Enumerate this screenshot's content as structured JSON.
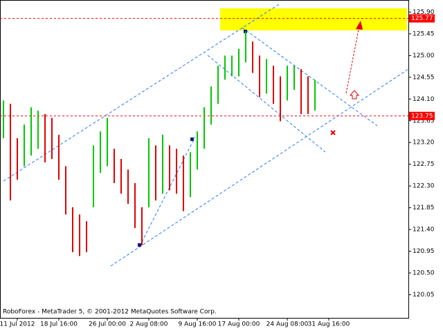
{
  "chart_data": {
    "type": "ohlc",
    "copyright": "RoboForex - MetaTrader 5, © 2001-2012 MetaQuotes Software Corp.",
    "categories": [
      null,
      null,
      "11 Jul 2012",
      null,
      null,
      null,
      null,
      null,
      "18 Jul 16:00",
      null,
      null,
      null,
      null,
      null,
      null,
      "26 Jul 00:00",
      null,
      null,
      null,
      null,
      null,
      "2 Aug 08:00",
      null,
      null,
      null,
      null,
      null,
      null,
      "9 Aug 16:00",
      null,
      null,
      null,
      null,
      null,
      "17 Aug 00:00",
      null,
      null,
      null,
      null,
      null,
      null,
      "24 Aug 08:00",
      null,
      null,
      null,
      null,
      null,
      "31 Aug 16:00",
      null,
      null,
      null,
      null,
      null,
      null,
      null,
      null,
      null,
      null,
      null
    ],
    "highs": [
      124.07,
      124.0,
      123.29,
      123.57,
      123.93,
      123.86,
      123.79,
      123.71,
      123.36,
      122.71,
      121.86,
      121.71,
      121.57,
      123.14,
      123.43,
      123.71,
      123.07,
      122.86,
      122.64,
      122.36,
      121.86,
      123.29,
      123.14,
      123.36,
      123.14,
      123.07,
      122.93,
      123.0,
      123.43,
      123.93,
      124.36,
      124.79,
      125.0,
      125.0,
      125.14,
      125.5,
      125.29,
      125.0,
      124.93,
      124.79,
      124.57,
      124.79,
      124.79,
      124.72,
      124.57,
      124.5,
      null,
      null,
      null,
      null,
      null,
      null,
      null,
      null,
      null,
      null,
      null,
      null,
      null
    ],
    "lows": [
      123.29,
      122.0,
      122.43,
      122.71,
      122.93,
      123.07,
      122.79,
      122.86,
      122.43,
      121.71,
      120.93,
      120.85,
      120.93,
      121.86,
      122.57,
      122.71,
      122.36,
      122.14,
      121.93,
      121.43,
      121.07,
      121.86,
      122.0,
      122.14,
      122.21,
      122.14,
      121.78,
      122.07,
      122.64,
      123.07,
      123.57,
      124.0,
      124.5,
      124.57,
      124.57,
      124.86,
      124.64,
      124.14,
      124.21,
      124.0,
      123.64,
      124.07,
      124.29,
      123.79,
      123.79,
      123.86,
      null,
      null,
      null,
      null,
      null,
      null,
      null,
      null,
      null,
      null,
      null,
      null,
      null
    ],
    "up_color": "#00c800",
    "down_color": "#e00000",
    "ylim": [
      119.57,
      126.15
    ],
    "yticks": [
      {
        "value": 125.9,
        "label": "125.90"
      },
      {
        "value": 125.45,
        "label": "125.45"
      },
      {
        "value": 125.0,
        "label": "125.00"
      },
      {
        "value": 124.55,
        "label": "124.55"
      },
      {
        "value": 124.1,
        "label": "124.10"
      },
      {
        "value": 123.65,
        "label": "123.65"
      },
      {
        "value": 123.2,
        "label": "123.20"
      },
      {
        "value": 122.75,
        "label": "122.75"
      },
      {
        "value": 122.3,
        "label": "122.30"
      },
      {
        "value": 121.85,
        "label": "121.85"
      },
      {
        "value": 121.4,
        "label": "121.40"
      },
      {
        "value": 120.95,
        "label": "120.95"
      },
      {
        "value": 120.5,
        "label": "120.50"
      },
      {
        "value": 120.05,
        "label": "120.05"
      }
    ],
    "levels": [
      125.77,
      123.75
    ],
    "level_color": "#ff0000"
  }
}
